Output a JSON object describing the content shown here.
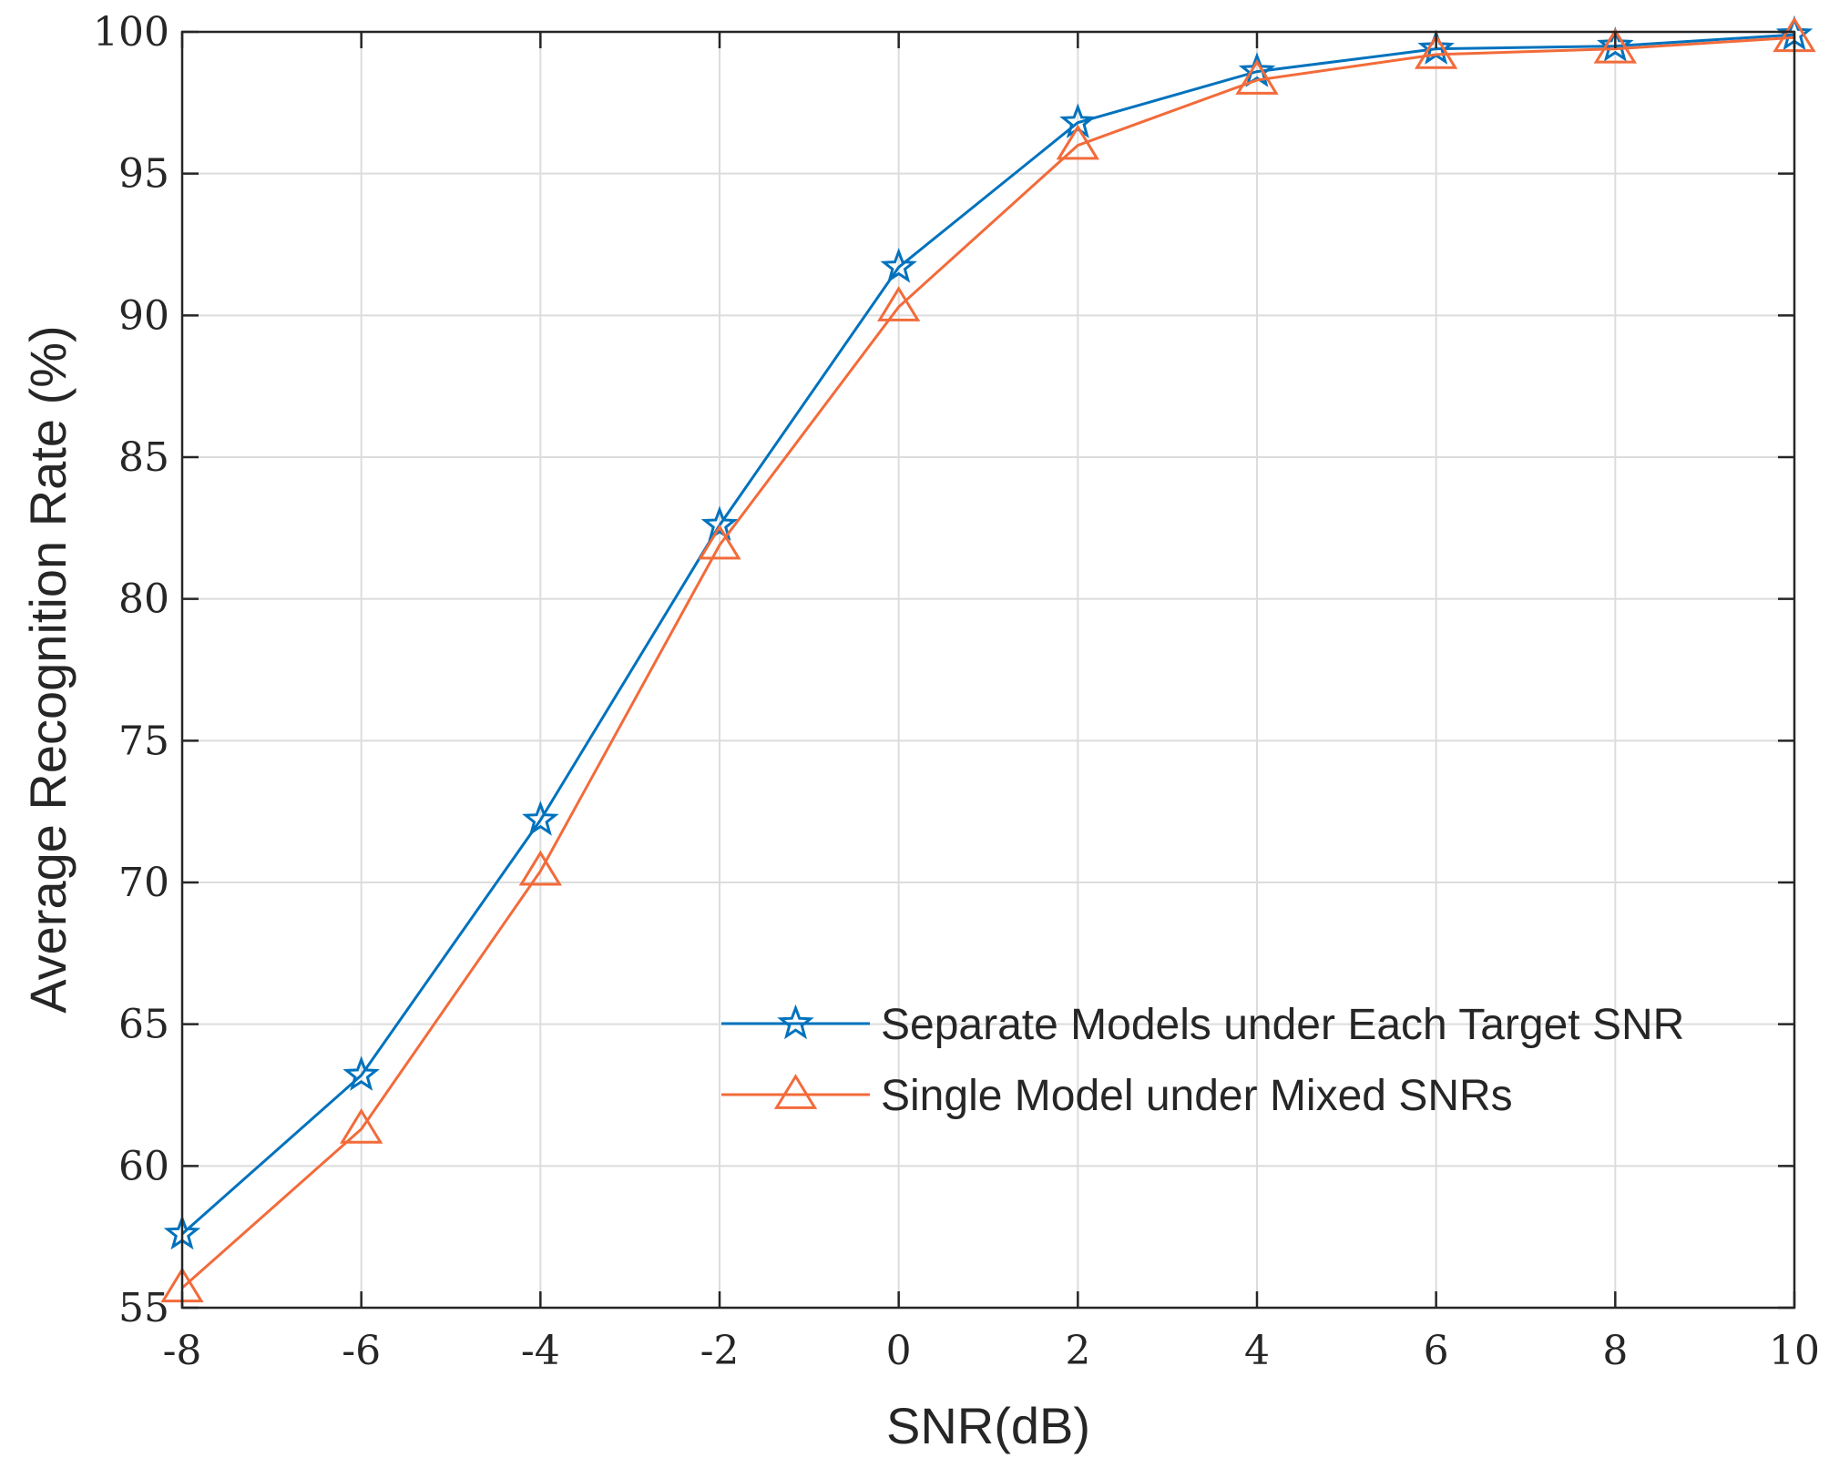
{
  "chart_data": {
    "type": "line",
    "title": "",
    "xlabel": "SNR(dB)",
    "ylabel": "Average Recognition Rate (%)",
    "x": [
      -8,
      -6,
      -4,
      -2,
      0,
      2,
      4,
      6,
      8,
      10
    ],
    "xticks": [
      "-8",
      "-6",
      "-4",
      "-2",
      "0",
      "2",
      "4",
      "6",
      "8",
      "10"
    ],
    "yticks": [
      "55",
      "60",
      "65",
      "70",
      "75",
      "80",
      "85",
      "90",
      "95",
      "100"
    ],
    "xlim": [
      -8,
      10
    ],
    "ylim": [
      55,
      100
    ],
    "grid": true,
    "legend_position": "lower-right",
    "series": [
      {
        "name": "Separate Models under Each Target SNR",
        "values": [
          57.6,
          63.2,
          72.2,
          82.6,
          91.7,
          96.8,
          98.6,
          99.4,
          99.5,
          99.9
        ],
        "color": "#0072BD",
        "marker": "star"
      },
      {
        "name": "Single Model under Mixed SNRs",
        "values": [
          55.7,
          61.3,
          70.4,
          81.9,
          90.3,
          96.0,
          98.3,
          99.2,
          99.4,
          99.8
        ],
        "color": "#F26B3A",
        "marker": "triangle"
      }
    ]
  }
}
